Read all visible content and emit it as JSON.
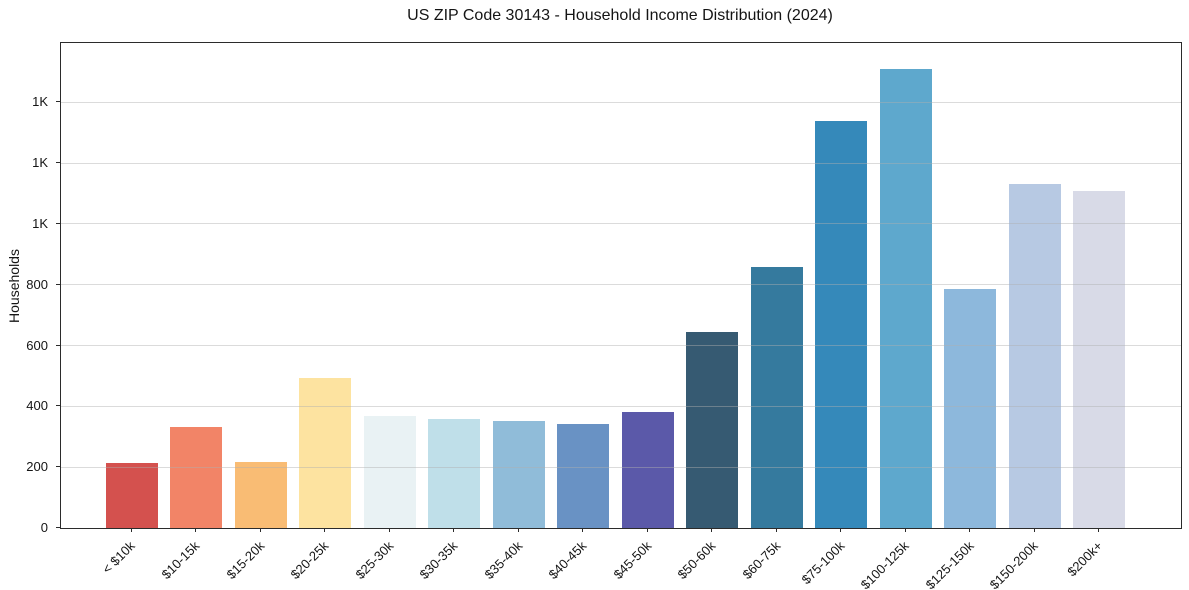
{
  "chart_data": {
    "type": "bar",
    "title": "US ZIP Code 30143 - Household Income Distribution (2024)",
    "ylabel": "Households",
    "xlabel": "",
    "categories": [
      "< $10k",
      "$10-15k",
      "$15-20k",
      "$20-25k",
      "$25-30k",
      "$30-35k",
      "$35-40k",
      "$40-45k",
      "$45-50k",
      "$50-60k",
      "$60-75k",
      "$75-100k",
      "$100-125k",
      "$125-150k",
      "$150-200k",
      "$200k+"
    ],
    "values": [
      215,
      331,
      217,
      493,
      369,
      357,
      352,
      343,
      381,
      645,
      857,
      1340,
      1508,
      785,
      1131,
      1107
    ],
    "bar_colors": [
      "#d4514e",
      "#f28467",
      "#f9bc74",
      "#fde3a0",
      "#e9f2f4",
      "#bfdfe9",
      "#90bcd9",
      "#6992c4",
      "#5b59a9",
      "#365a72",
      "#357a9e",
      "#3589ba",
      "#5ea8cd",
      "#8db8dc",
      "#b7c9e3",
      "#d8dae7"
    ],
    "ylim": [
      0,
      1595
    ],
    "yticks": [
      {
        "value": 0,
        "label": "0"
      },
      {
        "value": 200,
        "label": "200"
      },
      {
        "value": 400,
        "label": "400"
      },
      {
        "value": 600,
        "label": "600"
      },
      {
        "value": 800,
        "label": "800"
      },
      {
        "value": 1000,
        "label": "1K"
      },
      {
        "value": 1200,
        "label": "1K"
      },
      {
        "value": 1400,
        "label": "1K"
      }
    ],
    "grid": true,
    "gridline_color": "#e9e9e9",
    "legend": null,
    "background": "#ffffff"
  }
}
